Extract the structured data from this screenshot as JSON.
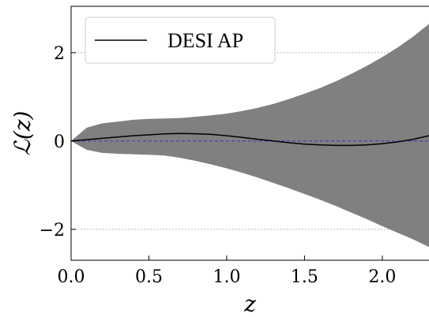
{
  "chart_data": {
    "type": "line",
    "xlabel": "z",
    "ylabel": "ℒ(z)",
    "xlim": [
      0.0,
      2.3
    ],
    "ylim": [
      -2.7,
      3.05
    ],
    "xticks": [
      0.0,
      0.5,
      1.0,
      1.5,
      2.0
    ],
    "xtick_labels": [
      "0.0",
      "0.5",
      "1.0",
      "1.5",
      "2.0"
    ],
    "yticks": [
      -2,
      0,
      2
    ],
    "ytick_labels": [
      "−2",
      "0",
      "2"
    ],
    "grid": "horizontal dotted at y ticks",
    "legend_position": "top-left",
    "series": [
      {
        "name": "DESI AP",
        "color": "#000000",
        "x": [
          0.0,
          0.1,
          0.2,
          0.3,
          0.4,
          0.5,
          0.6,
          0.7,
          0.8,
          0.9,
          1.0,
          1.1,
          1.2,
          1.3,
          1.4,
          1.5,
          1.6,
          1.7,
          1.8,
          1.9,
          2.0,
          2.1,
          2.2,
          2.3
        ],
        "y": [
          0.0,
          0.03,
          0.06,
          0.09,
          0.12,
          0.14,
          0.16,
          0.17,
          0.165,
          0.15,
          0.12,
          0.08,
          0.04,
          0.0,
          -0.04,
          -0.07,
          -0.09,
          -0.1,
          -0.1,
          -0.09,
          -0.06,
          -0.02,
          0.04,
          0.12
        ]
      }
    ],
    "band": {
      "color": "#808080",
      "x": [
        0.0,
        0.1,
        0.2,
        0.3,
        0.4,
        0.5,
        0.6,
        0.7,
        0.8,
        0.9,
        1.0,
        1.1,
        1.2,
        1.3,
        1.4,
        1.5,
        1.6,
        1.7,
        1.8,
        1.9,
        2.0,
        2.1,
        2.2,
        2.3
      ],
      "upper": [
        0.0,
        0.3,
        0.4,
        0.44,
        0.48,
        0.5,
        0.51,
        0.52,
        0.55,
        0.58,
        0.62,
        0.68,
        0.75,
        0.84,
        0.95,
        1.07,
        1.2,
        1.35,
        1.52,
        1.7,
        1.9,
        2.12,
        2.37,
        2.65
      ],
      "lower": [
        0.0,
        -0.2,
        -0.27,
        -0.29,
        -0.3,
        -0.31,
        -0.33,
        -0.38,
        -0.45,
        -0.53,
        -0.62,
        -0.72,
        -0.83,
        -0.95,
        -1.07,
        -1.2,
        -1.33,
        -1.47,
        -1.62,
        -1.77,
        -1.93,
        -2.08,
        -2.23,
        -2.4
      ]
    },
    "reference_line": {
      "y": 0,
      "color": "#3b3bd6",
      "style": "dashed"
    }
  }
}
